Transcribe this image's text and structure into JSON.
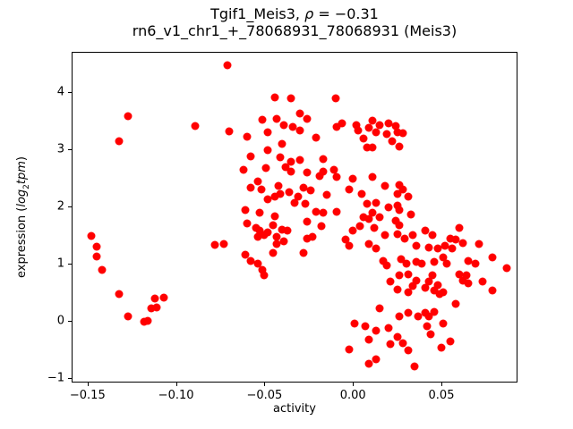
{
  "title": {
    "part1": "Tgif1_Meis3, ",
    "rho": "ρ",
    "part2": " = −0.31",
    "subtitle": "rn6_v1_chr1_+_78068931_78068931 (Meis3)"
  },
  "axes": {
    "x_label": "activity",
    "y_label_prefix": "expression (",
    "y_label_log": "log",
    "y_label_sub": "2",
    "y_label_tpm": "tpm",
    "y_label_suffix": ")"
  },
  "chart_data": {
    "type": "scatter",
    "title": "Tgif1_Meis3, ρ = −0.31",
    "subtitle": "rn6_v1_chr1_+_78068931_78068931 (Meis3)",
    "xlabel": "activity",
    "ylabel": "expression (log2tpm)",
    "marker_color": "#ff0000",
    "marker_diameter_px": 9,
    "xlim": [
      -0.159,
      0.093
    ],
    "ylim": [
      -1.078,
      4.703
    ],
    "x_ticks": [
      -0.15,
      -0.1,
      -0.05,
      0.0,
      0.05
    ],
    "x_tick_labels": [
      "−0.15",
      "−0.10",
      "−0.05",
      "0.00",
      "0.05"
    ],
    "y_ticks": [
      -1,
      0,
      1,
      2,
      3,
      4
    ],
    "y_tick_labels": [
      "−1",
      "0",
      "1",
      "2",
      "3",
      "4"
    ],
    "grid": false,
    "legend": null,
    "points": [
      [
        -0.127,
        3.58
      ],
      [
        -0.132,
        3.14
      ],
      [
        -0.089,
        3.41
      ],
      [
        -0.071,
        4.47
      ],
      [
        -0.044,
        3.91
      ],
      [
        -0.035,
        3.89
      ],
      [
        -0.01,
        3.89
      ],
      [
        -0.03,
        3.63
      ],
      [
        -0.051,
        3.52
      ],
      [
        -0.043,
        3.53
      ],
      [
        -0.026,
        3.53
      ],
      [
        -0.07,
        3.31
      ],
      [
        -0.06,
        3.22
      ],
      [
        -0.048,
        3.3
      ],
      [
        -0.039,
        3.42
      ],
      [
        -0.034,
        3.39
      ],
      [
        -0.03,
        3.33
      ],
      [
        -0.021,
        3.2
      ],
      [
        -0.009,
        3.39
      ],
      [
        -0.006,
        3.45
      ],
      [
        0.002,
        3.42
      ],
      [
        -0.04,
        3.09
      ],
      [
        -0.048,
        2.98
      ],
      [
        -0.058,
        2.88
      ],
      [
        -0.041,
        2.86
      ],
      [
        -0.035,
        2.78
      ],
      [
        -0.03,
        2.81
      ],
      [
        -0.017,
        2.83
      ],
      [
        0.003,
        3.33
      ],
      [
        0.006,
        3.19
      ],
      [
        0.008,
        3.03
      ],
      [
        0.011,
        3.5
      ],
      [
        0.015,
        3.42
      ],
      [
        0.02,
        3.45
      ],
      [
        0.024,
        3.41
      ],
      [
        0.013,
        3.3
      ],
      [
        0.019,
        3.27
      ],
      [
        0.025,
        3.3
      ],
      [
        0.028,
        3.28
      ],
      [
        0.022,
        3.14
      ],
      [
        0.026,
        3.05
      ],
      [
        0.011,
        3.03
      ],
      [
        0.009,
        3.38
      ],
      [
        -0.148,
        1.48
      ],
      [
        -0.145,
        1.3
      ],
      [
        -0.145,
        1.13
      ],
      [
        -0.142,
        0.89
      ],
      [
        -0.078,
        1.33
      ],
      [
        -0.062,
        2.64
      ],
      [
        -0.049,
        2.67
      ],
      [
        -0.038,
        2.69
      ],
      [
        -0.035,
        2.61
      ],
      [
        -0.026,
        2.59
      ],
      [
        -0.017,
        2.61
      ],
      [
        -0.011,
        2.64
      ],
      [
        -0.009,
        2.52
      ],
      [
        -0.054,
        2.44
      ],
      [
        -0.058,
        2.33
      ],
      [
        -0.052,
        2.3
      ],
      [
        -0.042,
        2.36
      ],
      [
        -0.041,
        2.22
      ],
      [
        -0.036,
        2.25
      ],
      [
        -0.028,
        2.33
      ],
      [
        -0.024,
        2.28
      ],
      [
        -0.019,
        2.53
      ],
      [
        -0.015,
        2.2
      ],
      [
        0.0,
        2.48
      ],
      [
        -0.002,
        2.3
      ],
      [
        0.005,
        2.22
      ],
      [
        -0.048,
        2.13
      ],
      [
        -0.044,
        2.17
      ],
      [
        -0.033,
        2.06
      ],
      [
        -0.031,
        2.17
      ],
      [
        -0.027,
        2.05
      ],
      [
        -0.021,
        1.91
      ],
      [
        -0.017,
        1.89
      ],
      [
        -0.009,
        1.91
      ],
      [
        -0.061,
        1.94
      ],
      [
        -0.053,
        1.89
      ],
      [
        0.008,
        2.05
      ],
      [
        0.006,
        1.81
      ],
      [
        -0.044,
        1.83
      ],
      [
        -0.045,
        1.67
      ],
      [
        -0.06,
        1.7
      ],
      [
        -0.055,
        1.63
      ],
      [
        -0.053,
        1.58
      ],
      [
        -0.048,
        1.55
      ],
      [
        -0.04,
        1.59
      ],
      [
        -0.037,
        1.58
      ],
      [
        -0.026,
        1.73
      ],
      [
        -0.018,
        1.66
      ],
      [
        0.0,
        1.58
      ],
      [
        0.004,
        1.66
      ],
      [
        -0.073,
        1.34
      ],
      [
        -0.054,
        1.47
      ],
      [
        -0.05,
        1.5
      ],
      [
        -0.043,
        1.47
      ],
      [
        -0.043,
        1.34
      ],
      [
        -0.039,
        1.39
      ],
      [
        -0.026,
        1.44
      ],
      [
        -0.023,
        1.47
      ],
      [
        -0.004,
        1.42
      ],
      [
        -0.002,
        1.31
      ],
      [
        -0.061,
        1.16
      ],
      [
        -0.058,
        1.05
      ],
      [
        -0.054,
        1.0
      ],
      [
        -0.045,
        1.19
      ],
      [
        -0.028,
        1.19
      ],
      [
        -0.051,
        0.89
      ],
      [
        -0.05,
        0.8
      ],
      [
        0.011,
        2.52
      ],
      [
        0.018,
        2.36
      ],
      [
        0.026,
        2.38
      ],
      [
        0.028,
        2.3
      ],
      [
        0.025,
        2.22
      ],
      [
        0.031,
        2.17
      ],
      [
        0.013,
        2.06
      ],
      [
        0.02,
        1.98
      ],
      [
        0.025,
        2.02
      ],
      [
        0.026,
        1.94
      ],
      [
        0.011,
        1.89
      ],
      [
        0.015,
        1.81
      ],
      [
        0.009,
        1.78
      ],
      [
        0.024,
        1.75
      ],
      [
        0.026,
        1.67
      ],
      [
        0.033,
        1.86
      ],
      [
        0.012,
        1.63
      ],
      [
        0.018,
        1.5
      ],
      [
        0.025,
        1.52
      ],
      [
        0.029,
        1.44
      ],
      [
        0.034,
        1.5
      ],
      [
        0.041,
        1.58
      ],
      [
        0.045,
        1.5
      ],
      [
        0.06,
        1.63
      ],
      [
        0.055,
        1.44
      ],
      [
        0.058,
        1.42
      ],
      [
        0.009,
        1.34
      ],
      [
        0.013,
        1.27
      ],
      [
        0.036,
        1.31
      ],
      [
        0.043,
        1.28
      ],
      [
        0.048,
        1.27
      ],
      [
        0.052,
        1.31
      ],
      [
        0.056,
        1.27
      ],
      [
        0.062,
        1.36
      ],
      [
        0.071,
        1.34
      ],
      [
        0.017,
        1.05
      ],
      [
        0.019,
        0.97
      ],
      [
        0.027,
        1.08
      ],
      [
        0.03,
        1.0
      ],
      [
        0.036,
        1.03
      ],
      [
        0.039,
        1.0
      ],
      [
        0.046,
        1.03
      ],
      [
        0.051,
        1.11
      ],
      [
        0.053,
        1.0
      ],
      [
        0.065,
        1.05
      ],
      [
        0.069,
        1.0
      ],
      [
        0.079,
        1.11
      ],
      [
        0.06,
        0.81
      ],
      [
        0.064,
        0.8
      ],
      [
        0.087,
        0.92
      ],
      [
        0.026,
        0.8
      ],
      [
        0.031,
        0.81
      ],
      [
        0.045,
        0.8
      ],
      [
        -0.132,
        0.47
      ],
      [
        -0.112,
        0.39
      ],
      [
        -0.107,
        0.41
      ],
      [
        -0.114,
        0.22
      ],
      [
        -0.111,
        0.23
      ],
      [
        -0.127,
        0.08
      ],
      [
        -0.118,
        -0.02
      ],
      [
        -0.116,
        0.0
      ],
      [
        0.001,
        -0.05
      ],
      [
        0.007,
        -0.09
      ],
      [
        -0.002,
        -0.5
      ],
      [
        0.009,
        -0.75
      ],
      [
        0.021,
        0.69
      ],
      [
        0.025,
        0.55
      ],
      [
        0.031,
        0.5
      ],
      [
        0.034,
        0.61
      ],
      [
        0.036,
        0.7
      ],
      [
        0.041,
        0.58
      ],
      [
        0.043,
        0.69
      ],
      [
        0.046,
        0.53
      ],
      [
        0.048,
        0.63
      ],
      [
        0.051,
        0.5
      ],
      [
        0.062,
        0.7
      ],
      [
        0.065,
        0.66
      ],
      [
        0.073,
        0.69
      ],
      [
        0.079,
        0.53
      ],
      [
        0.015,
        0.22
      ],
      [
        0.026,
        0.08
      ],
      [
        0.031,
        0.14
      ],
      [
        0.037,
        0.08
      ],
      [
        0.041,
        0.14
      ],
      [
        0.043,
        0.08
      ],
      [
        0.046,
        0.16
      ],
      [
        0.049,
        0.47
      ],
      [
        0.058,
        0.3
      ],
      [
        0.051,
        -0.05
      ],
      [
        0.02,
        -0.13
      ],
      [
        0.013,
        -0.17
      ],
      [
        0.025,
        -0.28
      ],
      [
        0.028,
        -0.39
      ],
      [
        0.021,
        -0.41
      ],
      [
        0.031,
        -0.52
      ],
      [
        0.042,
        -0.09
      ],
      [
        0.044,
        -0.23
      ],
      [
        0.05,
        -0.47
      ],
      [
        0.055,
        -0.36
      ],
      [
        0.013,
        -0.67
      ],
      [
        0.035,
        -0.8
      ],
      [
        0.009,
        -0.33
      ]
    ]
  }
}
